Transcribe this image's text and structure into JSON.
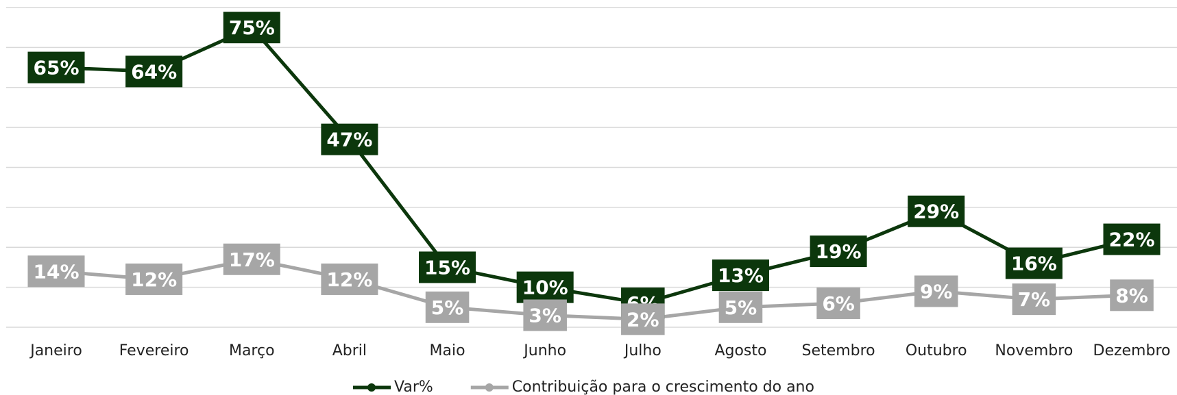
{
  "chart_data": {
    "type": "line",
    "categories": [
      "Janeiro",
      "Fevereiro",
      "Março",
      "Abril",
      "Maio",
      "Junho",
      "Julho",
      "Agosto",
      "Setembro",
      "Outubro",
      "Novembro",
      "Dezembro"
    ],
    "series": [
      {
        "name": "Var%",
        "color": "#0c370c",
        "values": [
          65,
          64,
          75,
          47,
          15,
          10,
          6,
          13,
          19,
          29,
          16,
          22
        ],
        "value_labels": [
          "65%",
          "64%",
          "75%",
          "47%",
          "15%",
          "10%",
          "6%",
          "13%",
          "19%",
          "29%",
          "16%",
          "22%"
        ]
      },
      {
        "name": "Contribuição para o crescimento do ano",
        "color": "#a6a6a6",
        "values": [
          14,
          12,
          17,
          12,
          5,
          3,
          2,
          5,
          6,
          9,
          7,
          8
        ],
        "value_labels": [
          "14%",
          "12%",
          "17%",
          "12%",
          "5%",
          "3%",
          "2%",
          "5%",
          "6%",
          "9%",
          "7%",
          "8%"
        ]
      }
    ],
    "ylim": [
      0,
      80
    ],
    "yticks": [
      0,
      10,
      20,
      30,
      40,
      50,
      60,
      70,
      80
    ],
    "grid": true,
    "legend": "bottom"
  }
}
